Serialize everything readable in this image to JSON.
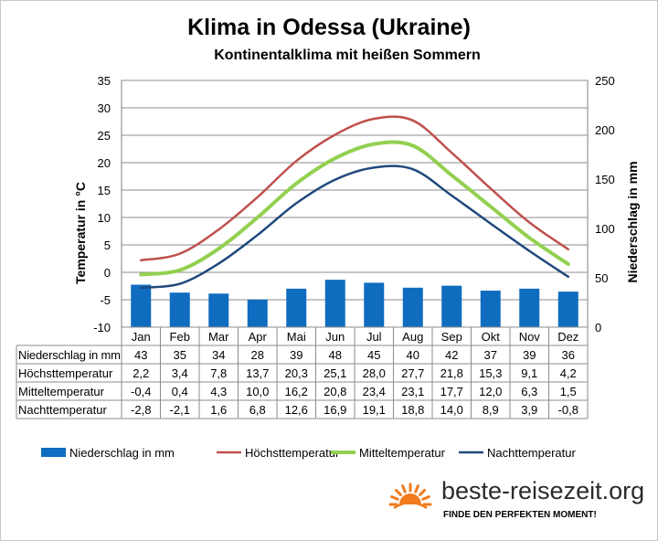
{
  "chart_data": {
    "type": "bar+line",
    "title": "Klima in Odessa (Ukraine)",
    "subtitle": "Kontinentalklima  mit heißen  Sommern",
    "categories": [
      "Jan",
      "Feb",
      "Mar",
      "Apr",
      "Mai",
      "Jun",
      "Jul",
      "Aug",
      "Sep",
      "Okt",
      "Nov",
      "Dez"
    ],
    "y_left": {
      "label": "Temperatur in °C",
      "range": [
        -10,
        35
      ],
      "ticks": [
        35,
        30,
        25,
        20,
        15,
        10,
        5,
        0,
        -5,
        -10
      ]
    },
    "y_right": {
      "label": "Niederschlag in mm",
      "range": [
        0,
        250
      ],
      "ticks": [
        250,
        200,
        150,
        100,
        50,
        0
      ]
    },
    "series": [
      {
        "name": "Niederschlag in mm",
        "type": "bar",
        "axis": "right",
        "color": "#0f6cbf",
        "values": [
          43,
          35,
          34,
          28,
          39,
          48,
          45,
          40,
          42,
          37,
          39,
          36
        ],
        "display": [
          "43",
          "35",
          "34",
          "28",
          "39",
          "48",
          "45",
          "40",
          "42",
          "37",
          "39",
          "36"
        ]
      },
      {
        "name": "Höchsttemperatur",
        "type": "line",
        "axis": "left",
        "color": "#c0504d",
        "values": [
          2.2,
          3.4,
          7.8,
          13.7,
          20.3,
          25.1,
          28.0,
          27.7,
          21.8,
          15.3,
          9.1,
          4.2
        ],
        "display": [
          "2,2",
          "3,4",
          "7,8",
          "13,7",
          "20,3",
          "25,1",
          "28,0",
          "27,7",
          "21,8",
          "15,3",
          "9,1",
          "4,2"
        ]
      },
      {
        "name": "Mitteltemperatur",
        "type": "line",
        "axis": "left",
        "color": "#92d050",
        "values": [
          -0.4,
          0.4,
          4.3,
          10.0,
          16.2,
          20.8,
          23.4,
          23.1,
          17.7,
          12.0,
          6.3,
          1.5
        ],
        "display": [
          "-0,4",
          "0,4",
          "4,3",
          "10,0",
          "16,2",
          "20,8",
          "23,4",
          "23,1",
          "17,7",
          "12,0",
          "6,3",
          "1,5"
        ]
      },
      {
        "name": "Nachttemperatur",
        "type": "line",
        "axis": "left",
        "color": "#1f497d",
        "values": [
          -2.8,
          -2.1,
          1.6,
          6.8,
          12.6,
          16.9,
          19.1,
          18.8,
          14.0,
          8.9,
          3.9,
          -0.8
        ],
        "display": [
          "-2,8",
          "-2,1",
          "1,6",
          "6,8",
          "12,6",
          "16,9",
          "19,1",
          "18,8",
          "14,0",
          "8,9",
          "3,9",
          "-0,8"
        ]
      }
    ],
    "legend_position": "bottom",
    "grid": true
  },
  "brand": {
    "name": "beste-reisezeit.org",
    "tagline": "FINDE DEN PERFEKTEN MOMENT!",
    "icon": "sun-icon",
    "icon_color": "#f07c1e"
  }
}
